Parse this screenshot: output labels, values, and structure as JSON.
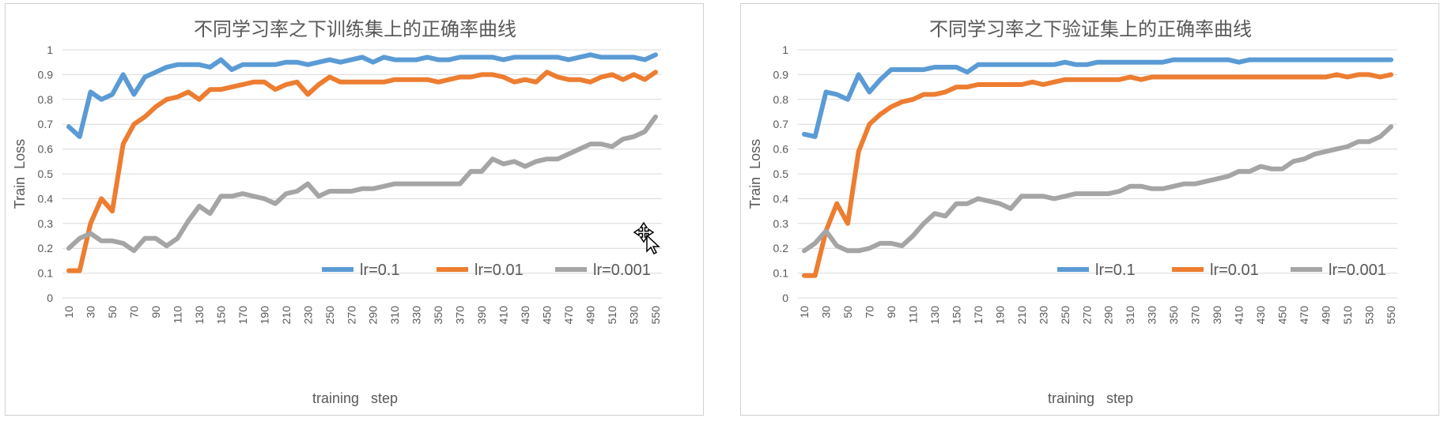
{
  "chart_data": [
    {
      "type": "line",
      "title": "不同学习率之下训练集上的正确率曲线",
      "xlabel": "training   step",
      "ylabel": "Train  Loss",
      "ylim": [
        0,
        1
      ],
      "yticks": [
        "0",
        "0.1",
        "0.2",
        "0.3",
        "0.4",
        "0.5",
        "0.6",
        "0.7",
        "0.8",
        "0.9",
        "1"
      ],
      "x": [
        10,
        20,
        30,
        40,
        50,
        60,
        70,
        80,
        90,
        100,
        110,
        120,
        130,
        140,
        150,
        160,
        170,
        180,
        190,
        200,
        210,
        220,
        230,
        240,
        250,
        260,
        270,
        280,
        290,
        300,
        310,
        320,
        330,
        340,
        350,
        360,
        370,
        380,
        390,
        400,
        410,
        420,
        430,
        440,
        450,
        460,
        470,
        480,
        490,
        500,
        510,
        520,
        530,
        540,
        550
      ],
      "xticks": [
        "10",
        "30",
        "50",
        "70",
        "90",
        "110",
        "130",
        "150",
        "170",
        "190",
        "210",
        "230",
        "250",
        "270",
        "290",
        "310",
        "330",
        "350",
        "370",
        "390",
        "410",
        "430",
        "450",
        "470",
        "490",
        "510",
        "530",
        "550"
      ],
      "grid": true,
      "legend_position": "lower-right",
      "series": [
        {
          "name": "lr=0.1",
          "color": "#5b9bd5",
          "values": [
            0.69,
            0.65,
            0.83,
            0.8,
            0.82,
            0.9,
            0.82,
            0.89,
            0.91,
            0.93,
            0.94,
            0.94,
            0.94,
            0.93,
            0.96,
            0.92,
            0.94,
            0.94,
            0.94,
            0.94,
            0.95,
            0.95,
            0.94,
            0.95,
            0.96,
            0.95,
            0.96,
            0.97,
            0.95,
            0.97,
            0.96,
            0.96,
            0.96,
            0.97,
            0.96,
            0.96,
            0.97,
            0.97,
            0.97,
            0.97,
            0.96,
            0.97,
            0.97,
            0.97,
            0.97,
            0.97,
            0.96,
            0.97,
            0.98,
            0.97,
            0.97,
            0.97,
            0.97,
            0.96,
            0.98
          ]
        },
        {
          "name": "lr=0.01",
          "color": "#ed7d31",
          "values": [
            0.11,
            0.11,
            0.3,
            0.4,
            0.35,
            0.62,
            0.7,
            0.73,
            0.77,
            0.8,
            0.81,
            0.83,
            0.8,
            0.84,
            0.84,
            0.85,
            0.86,
            0.87,
            0.87,
            0.84,
            0.86,
            0.87,
            0.82,
            0.86,
            0.89,
            0.87,
            0.87,
            0.87,
            0.87,
            0.87,
            0.88,
            0.88,
            0.88,
            0.88,
            0.87,
            0.88,
            0.89,
            0.89,
            0.9,
            0.9,
            0.89,
            0.87,
            0.88,
            0.87,
            0.91,
            0.89,
            0.88,
            0.88,
            0.87,
            0.89,
            0.9,
            0.88,
            0.9,
            0.88,
            0.91
          ]
        },
        {
          "name": "lr=0.001",
          "color": "#a5a5a5",
          "values": [
            0.2,
            0.24,
            0.26,
            0.23,
            0.23,
            0.22,
            0.19,
            0.24,
            0.24,
            0.21,
            0.24,
            0.31,
            0.37,
            0.34,
            0.41,
            0.41,
            0.42,
            0.41,
            0.4,
            0.38,
            0.42,
            0.43,
            0.46,
            0.41,
            0.43,
            0.43,
            0.43,
            0.44,
            0.44,
            0.45,
            0.46,
            0.46,
            0.46,
            0.46,
            0.46,
            0.46,
            0.46,
            0.51,
            0.51,
            0.56,
            0.54,
            0.55,
            0.53,
            0.55,
            0.56,
            0.56,
            0.58,
            0.6,
            0.62,
            0.62,
            0.61,
            0.64,
            0.65,
            0.67,
            0.73
          ]
        }
      ]
    },
    {
      "type": "line",
      "title": "不同学习率之下验证集上的正确率曲线",
      "xlabel": "training   step",
      "ylabel": "Train  Loss",
      "ylim": [
        0,
        1
      ],
      "yticks": [
        "0",
        "0.1",
        "0.2",
        "0.3",
        "0.4",
        "0.5",
        "0.6",
        "0.7",
        "0.8",
        "0.9",
        "1"
      ],
      "x": [
        10,
        20,
        30,
        40,
        50,
        60,
        70,
        80,
        90,
        100,
        110,
        120,
        130,
        140,
        150,
        160,
        170,
        180,
        190,
        200,
        210,
        220,
        230,
        240,
        250,
        260,
        270,
        280,
        290,
        300,
        310,
        320,
        330,
        340,
        350,
        360,
        370,
        380,
        390,
        400,
        410,
        420,
        430,
        440,
        450,
        460,
        470,
        480,
        490,
        500,
        510,
        520,
        530,
        540,
        550
      ],
      "xticks": [
        "10",
        "30",
        "50",
        "70",
        "90",
        "110",
        "130",
        "150",
        "170",
        "190",
        "210",
        "230",
        "250",
        "270",
        "290",
        "310",
        "330",
        "350",
        "370",
        "390",
        "410",
        "430",
        "450",
        "470",
        "490",
        "510",
        "530",
        "550"
      ],
      "grid": true,
      "legend_position": "lower-right",
      "series": [
        {
          "name": "lr=0.1",
          "color": "#5b9bd5",
          "values": [
            0.66,
            0.65,
            0.83,
            0.82,
            0.8,
            0.9,
            0.83,
            0.88,
            0.92,
            0.92,
            0.92,
            0.92,
            0.93,
            0.93,
            0.93,
            0.91,
            0.94,
            0.94,
            0.94,
            0.94,
            0.94,
            0.94,
            0.94,
            0.94,
            0.95,
            0.94,
            0.94,
            0.95,
            0.95,
            0.95,
            0.95,
            0.95,
            0.95,
            0.95,
            0.96,
            0.96,
            0.96,
            0.96,
            0.96,
            0.96,
            0.95,
            0.96,
            0.96,
            0.96,
            0.96,
            0.96,
            0.96,
            0.96,
            0.96,
            0.96,
            0.96,
            0.96,
            0.96,
            0.96,
            0.96
          ]
        },
        {
          "name": "lr=0.01",
          "color": "#ed7d31",
          "values": [
            0.09,
            0.09,
            0.27,
            0.38,
            0.3,
            0.59,
            0.7,
            0.74,
            0.77,
            0.79,
            0.8,
            0.82,
            0.82,
            0.83,
            0.85,
            0.85,
            0.86,
            0.86,
            0.86,
            0.86,
            0.86,
            0.87,
            0.86,
            0.87,
            0.88,
            0.88,
            0.88,
            0.88,
            0.88,
            0.88,
            0.89,
            0.88,
            0.89,
            0.89,
            0.89,
            0.89,
            0.89,
            0.89,
            0.89,
            0.89,
            0.89,
            0.89,
            0.89,
            0.89,
            0.89,
            0.89,
            0.89,
            0.89,
            0.89,
            0.9,
            0.89,
            0.9,
            0.9,
            0.89,
            0.9
          ]
        },
        {
          "name": "lr=0.001",
          "color": "#a5a5a5",
          "values": [
            0.19,
            0.22,
            0.27,
            0.21,
            0.19,
            0.19,
            0.2,
            0.22,
            0.22,
            0.21,
            0.25,
            0.3,
            0.34,
            0.33,
            0.38,
            0.38,
            0.4,
            0.39,
            0.38,
            0.36,
            0.41,
            0.41,
            0.41,
            0.4,
            0.41,
            0.42,
            0.42,
            0.42,
            0.42,
            0.43,
            0.45,
            0.45,
            0.44,
            0.44,
            0.45,
            0.46,
            0.46,
            0.47,
            0.48,
            0.49,
            0.51,
            0.51,
            0.53,
            0.52,
            0.52,
            0.55,
            0.56,
            0.58,
            0.59,
            0.6,
            0.61,
            0.63,
            0.63,
            0.65,
            0.69
          ]
        }
      ]
    }
  ],
  "overlay": {
    "cursor_icon": "move-cursor-icon"
  }
}
